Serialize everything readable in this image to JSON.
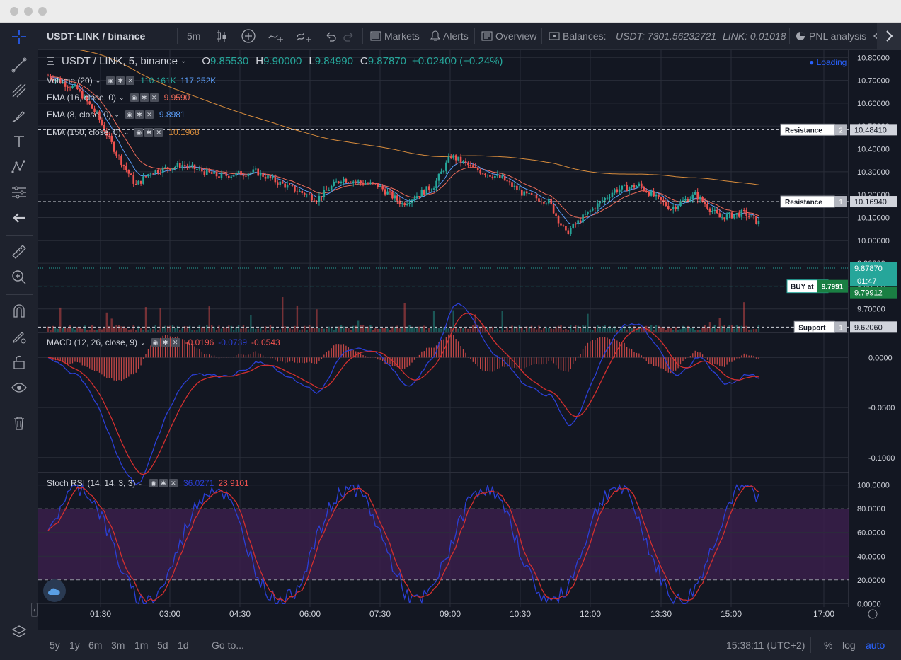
{
  "window": {
    "traffic_lights": [
      "close",
      "minimize",
      "zoom"
    ]
  },
  "top_toolbar": {
    "symbol": "USDT-LINK / binance",
    "interval": "5m",
    "markets_label": "Markets",
    "alerts_label": "Alerts",
    "overview_label": "Overview",
    "balances_label": "Balances:",
    "usdt_balance": "USDT: 7301.56232721",
    "link_balance": "LINK: 0.01018",
    "pnl_label": "PNL analysis"
  },
  "legend": {
    "symbol": "USDT / LINK, 5, binance",
    "o_label": "O",
    "o": "9.85530",
    "h_label": "H",
    "h": "9.90000",
    "l_label": "L",
    "l": "9.84990",
    "c_label": "C",
    "c": "9.87870",
    "change": "+0.02400 (+0.24%)",
    "loading": "Loading"
  },
  "indicators": {
    "volume": {
      "label": "Volume (20)",
      "v1": "110.161K",
      "v2": "117.252K"
    },
    "ema16": {
      "label": "EMA (16, close, 0)",
      "value": "9.9590"
    },
    "ema8": {
      "label": "EMA (8, close, 0)",
      "value": "9.8981"
    },
    "ema150": {
      "label": "EMA (150, close, 0)",
      "value": "10.1968"
    },
    "macd": {
      "label": "MACD (12, 26, close, 9)",
      "v1": "-0.0196",
      "v2": "-0.0739",
      "v3": "-0.0543"
    },
    "stoch": {
      "label": "Stoch RSI (14, 14, 3, 3)",
      "v1": "36.0271",
      "v2": "23.9101"
    }
  },
  "price_axis": [
    "10.80000",
    "10.70000",
    "10.60000",
    "10.50000",
    "10.40000",
    "10.30000",
    "10.20000",
    "10.10000",
    "10.00000",
    "9.90000",
    "9.80000",
    "9.70000"
  ],
  "macd_axis": [
    "0.0000",
    "-0.0500",
    "-0.1000"
  ],
  "stoch_axis": [
    "100.0000",
    "80.0000",
    "60.0000",
    "40.0000",
    "20.0000",
    "0.0000"
  ],
  "time_axis": [
    "01:30",
    "03:00",
    "04:30",
    "06:00",
    "07:30",
    "09:00",
    "10:30",
    "12:00",
    "13:30",
    "15:00",
    "17:00"
  ],
  "markers": {
    "resistance2": {
      "label": "Resistance",
      "index": "2",
      "price": "10.48410"
    },
    "resistance1": {
      "label": "Resistance",
      "index": "1",
      "price": "10.16940"
    },
    "support1": {
      "label": "Support",
      "index": "1",
      "price": "9.62060"
    },
    "buy": {
      "label": "BUY at",
      "value": "9.7991",
      "price": "9.79912"
    },
    "current_price": "9.87870",
    "countdown": "01:47"
  },
  "bottom_toolbar": {
    "ranges": [
      "5y",
      "1y",
      "6m",
      "3m",
      "1m",
      "5d",
      "1d"
    ],
    "goto": "Go to...",
    "time": "15:38:11 (UTC+2)",
    "percent": "%",
    "log": "log",
    "auto": "auto"
  },
  "colors": {
    "up": "#26a69a",
    "down": "#ef5350",
    "ema8": "#5b9cf6",
    "ema16": "#ef6c5a",
    "ema150": "#d88c3c",
    "macd": "#2b3fd6",
    "signal": "#d32f2f"
  }
}
